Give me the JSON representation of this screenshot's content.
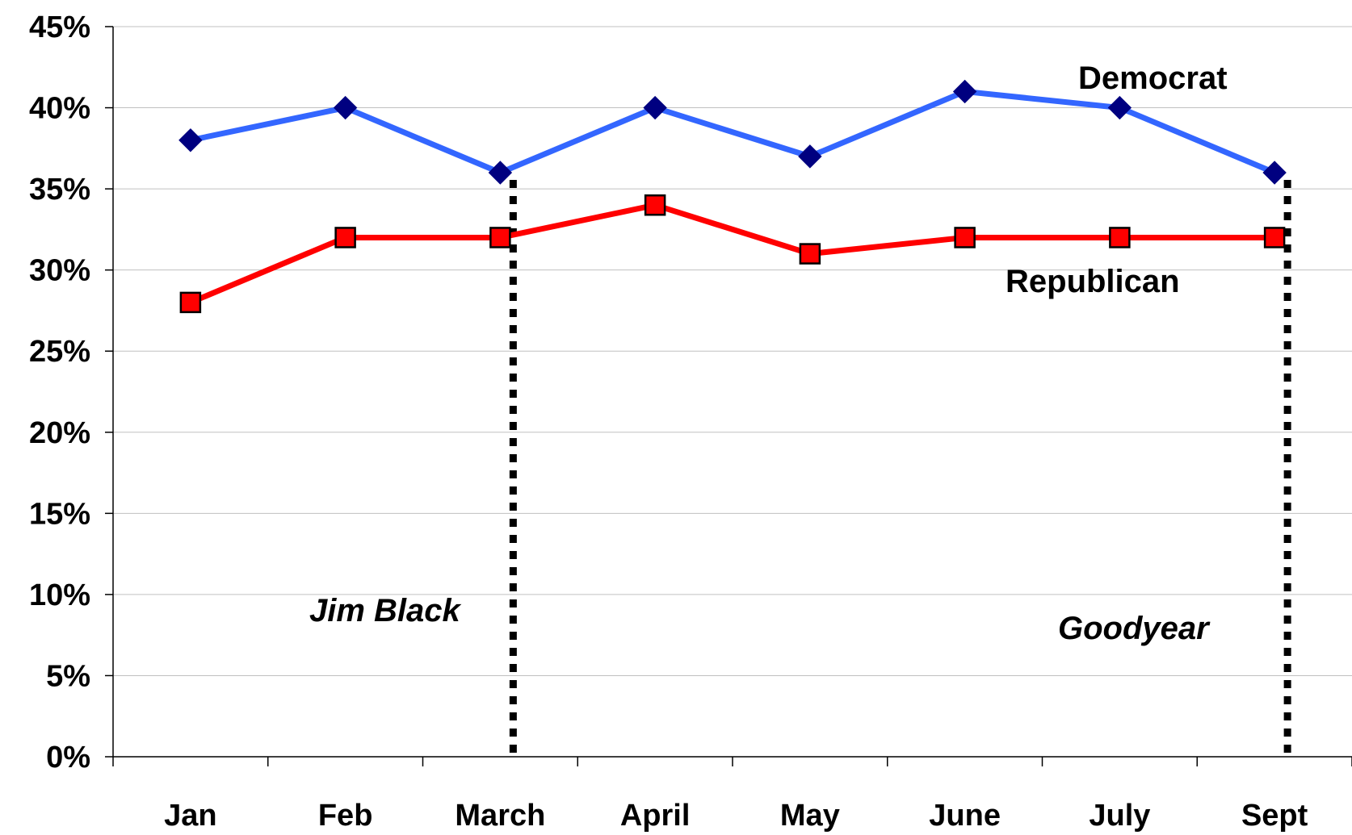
{
  "chart_data": {
    "type": "line",
    "categories": [
      "Jan",
      "Feb",
      "March",
      "April",
      "May",
      "June",
      "July",
      "Sept"
    ],
    "ylim": [
      0,
      45
    ],
    "yticks": [
      0,
      5,
      10,
      15,
      20,
      25,
      30,
      35,
      40,
      45
    ],
    "ytick_labels": [
      "0%",
      "5%",
      "10%",
      "15%",
      "20%",
      "25%",
      "30%",
      "35%",
      "40%",
      "45%"
    ],
    "grid": true,
    "series": [
      {
        "name": "Democrat",
        "values": [
          38,
          40,
          36,
          40,
          37,
          41,
          40,
          36
        ],
        "color": "#3366ff",
        "marker": "diamond",
        "marker_color": "#000080"
      },
      {
        "name": "Republican",
        "values": [
          28,
          32,
          32,
          34,
          31,
          32,
          32,
          32
        ],
        "color": "#ff0000",
        "marker": "square",
        "marker_color": "#ff0000"
      }
    ],
    "annotations": [
      {
        "text": "Jim Black",
        "at_category": "March"
      },
      {
        "text": "Goodyear",
        "at_category": "Sept"
      }
    ]
  }
}
